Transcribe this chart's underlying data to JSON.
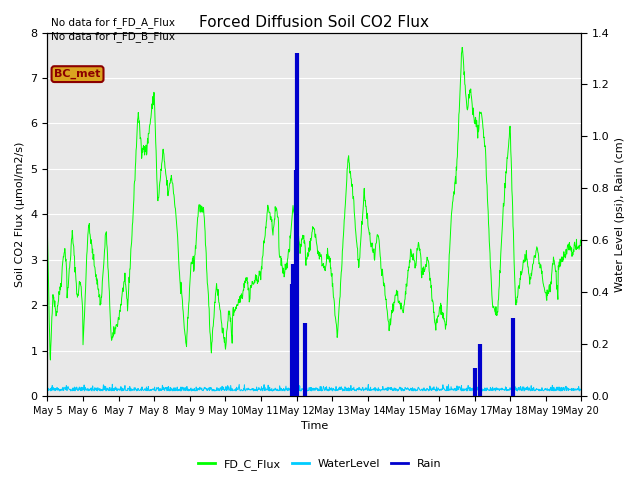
{
  "title": "Forced Diffusion Soil CO2 Flux",
  "xlabel": "Time",
  "ylabel_left": "Soil CO2 Flux (μmol/m2/s)",
  "ylabel_right": "Water Level (psi), Rain (cm)",
  "no_data_text": [
    "No data for f_FD_A_Flux",
    "No data for f_FD_B_Flux"
  ],
  "bc_met_label": "BC_met",
  "bc_met_color": "#8B0000",
  "bc_met_bg": "#DAA520",
  "legend_labels": [
    "FD_C_Flux",
    "WaterLevel",
    "Rain"
  ],
  "legend_colors": [
    "#00FF00",
    "#00CCFF",
    "#0000CD"
  ],
  "flux_color": "#00FF00",
  "water_color": "#00CCFF",
  "rain_color": "#0000CD",
  "ylim_left": [
    0.0,
    8.0
  ],
  "ylim_right": [
    0.0,
    1.4
  ],
  "background_color": "#E8E8E8",
  "x_tick_labels": [
    "May 5",
    "May 6",
    "May 7",
    "May 8",
    "May 9",
    "May 10",
    "May 11",
    "May 12",
    "May 13",
    "May 14",
    "May 15",
    "May 16",
    "May 17",
    "May 18",
    "May 19",
    "May 20"
  ]
}
